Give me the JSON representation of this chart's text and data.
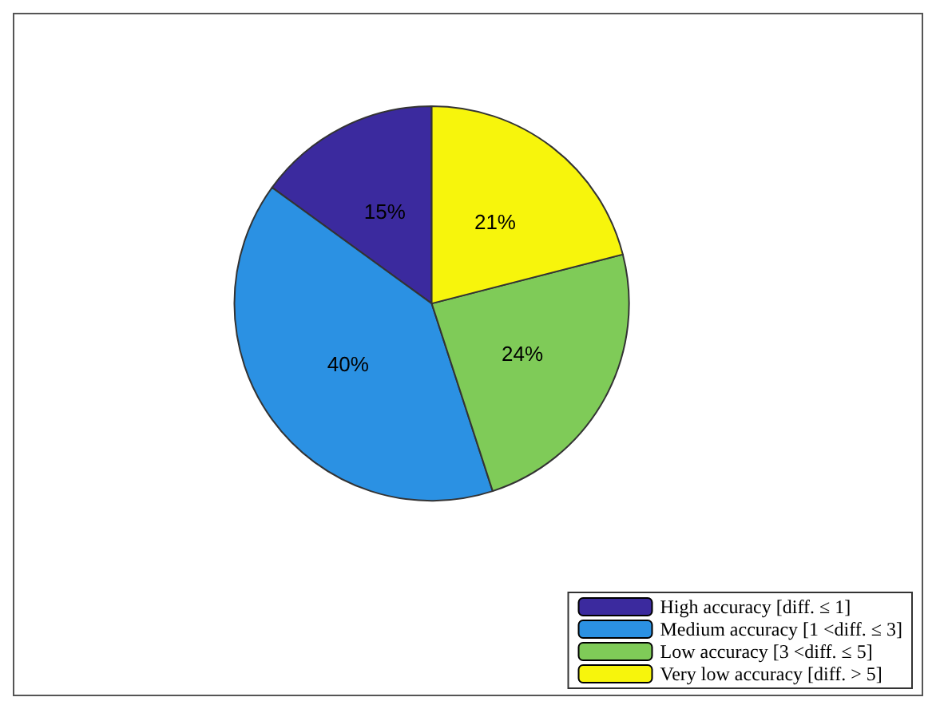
{
  "chart_data": {
    "type": "pie",
    "categories": [
      "High accuracy [diff. ≤ 1]",
      "Medium accuracy [1 <diff. ≤ 3]",
      "Low accuracy [3 <diff. ≤ 5]",
      "Very low accuracy [diff. > 5]"
    ],
    "values": [
      15,
      40,
      24,
      21
    ],
    "colors": [
      "#3b2a9e",
      "#2b91e3",
      "#7fcb58",
      "#f7f50c"
    ],
    "value_labels": [
      "15%",
      "40%",
      "24%",
      "21%"
    ],
    "legend": "bottom right"
  }
}
